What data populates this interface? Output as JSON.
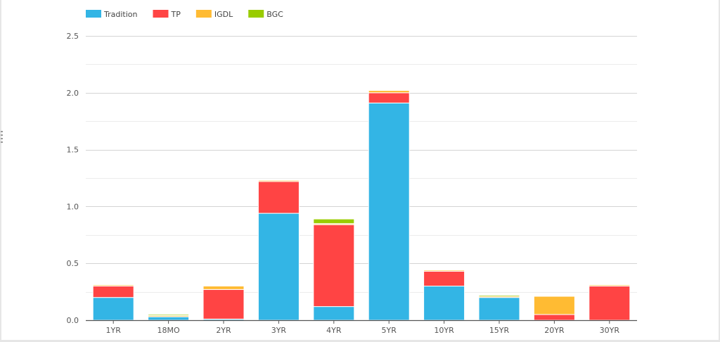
{
  "chart_data": {
    "type": "bar",
    "stacked": true,
    "categories": [
      "1YR",
      "18MO",
      "2YR",
      "3YR",
      "4YR",
      "5YR",
      "10YR",
      "15YR",
      "20YR",
      "30YR"
    ],
    "series": [
      {
        "name": "Tradition",
        "color": "#33b5e5",
        "values": [
          0.2,
          0.03,
          0.01,
          0.94,
          0.12,
          1.91,
          0.3,
          0.2,
          0.0,
          0.0
        ]
      },
      {
        "name": "TP",
        "color": "#ff4444",
        "values": [
          0.1,
          0.0,
          0.26,
          0.28,
          0.72,
          0.09,
          0.13,
          0.0,
          0.05,
          0.3
        ]
      },
      {
        "name": "IGDL",
        "color": "#ffbb33",
        "values": [
          0.01,
          0.01,
          0.03,
          0.01,
          0.01,
          0.02,
          0.01,
          0.01,
          0.16,
          0.01
        ]
      },
      {
        "name": "BGC",
        "color": "#99cc00",
        "values": [
          0.0,
          0.01,
          0.0,
          0.0,
          0.04,
          0.0,
          0.0,
          0.01,
          0.0,
          0.0
        ]
      }
    ],
    "yticks": [
      "0.0",
      "0.5",
      "1.0",
      "1.5",
      "2.0",
      "2.5"
    ],
    "ylim": [
      0,
      2.5
    ],
    "grid": true,
    "legend": "top-left"
  }
}
